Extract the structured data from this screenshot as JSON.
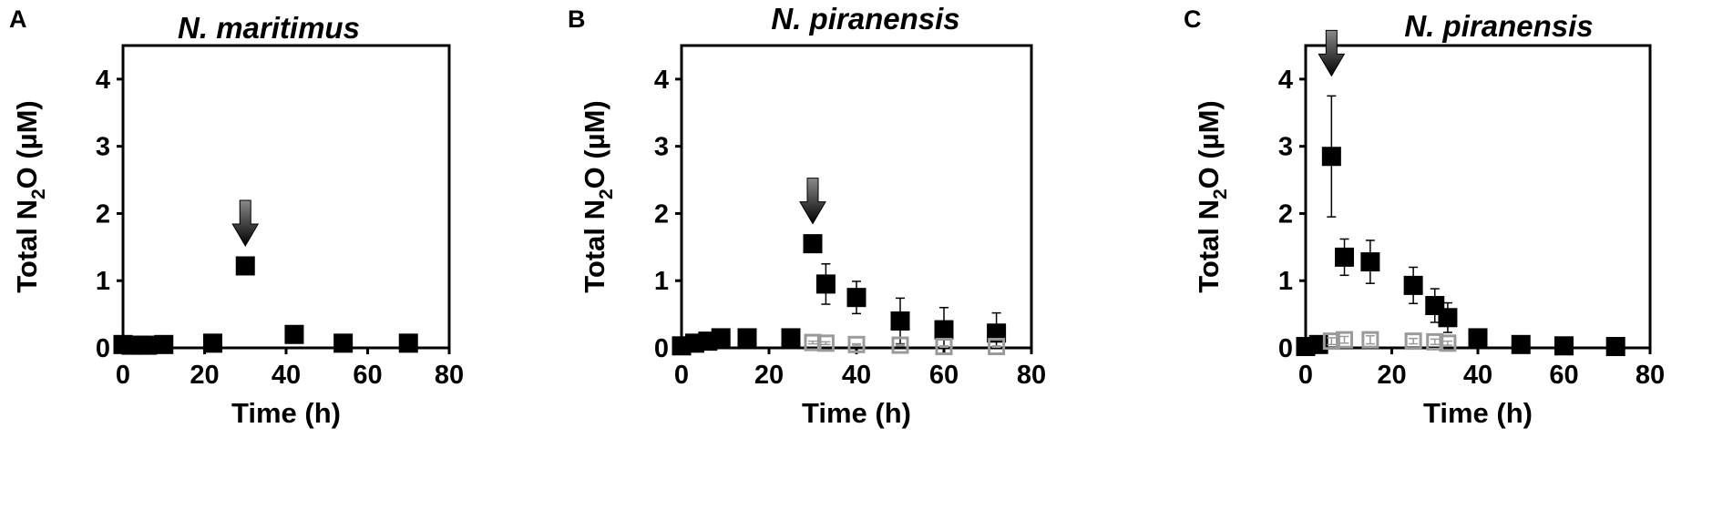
{
  "chart_data": [
    {
      "panel": "A",
      "type": "scatter",
      "title": "N. maritimus",
      "xlabel": "Time (h)",
      "ylabel_main": "Total N",
      "ylabel_sub": "2",
      "ylabel_end": "O (µM)",
      "xlim": [
        0,
        80
      ],
      "ylim": [
        0,
        4.5
      ],
      "xticks": [
        "0",
        "20",
        "40",
        "60",
        "80"
      ],
      "yticks": [
        "0",
        "1",
        "2",
        "3",
        "4"
      ],
      "arrow_x": 30,
      "series": [
        {
          "style": "filled",
          "x": [
            0,
            2,
            4,
            6,
            10,
            22,
            30,
            42,
            54,
            70
          ],
          "y": [
            0.05,
            0.04,
            0.04,
            0.04,
            0.05,
            0.07,
            1.22,
            0.2,
            0.07,
            0.07
          ],
          "err": [
            0,
            0,
            0,
            0,
            0,
            0,
            0,
            0.05,
            0,
            0
          ]
        }
      ]
    },
    {
      "panel": "B",
      "type": "scatter",
      "title": "N. piranensis",
      "xlabel": "Time (h)",
      "ylabel_main": "Total N",
      "ylabel_sub": "2",
      "ylabel_end": "O (µM)",
      "xlim": [
        0,
        80
      ],
      "ylim": [
        0,
        4.5
      ],
      "xticks": [
        "0",
        "20",
        "40",
        "60",
        "80"
      ],
      "yticks": [
        "0",
        "1",
        "2",
        "3",
        "4"
      ],
      "arrow_x": 30,
      "series": [
        {
          "style": "filled",
          "x": [
            0,
            3,
            6,
            9,
            15,
            25,
            30,
            33,
            40,
            50,
            60,
            72
          ],
          "y": [
            0.03,
            0.07,
            0.1,
            0.15,
            0.15,
            0.15,
            1.55,
            0.95,
            0.75,
            0.4,
            0.27,
            0.22
          ],
          "err": [
            0,
            0,
            0,
            0,
            0,
            0,
            0,
            0.3,
            0.24,
            0.34,
            0.33,
            0.3
          ]
        },
        {
          "style": "open",
          "x": [
            30,
            33,
            40,
            50,
            60,
            72
          ],
          "y": [
            0.08,
            0.07,
            0.05,
            0.04,
            0.02,
            0.02
          ],
          "err": [
            0.02,
            0.02,
            0.01,
            0.01,
            0.01,
            0.01
          ]
        }
      ]
    },
    {
      "panel": "C",
      "type": "scatter",
      "title": "N. piranensis",
      "xlabel": "Time (h)",
      "ylabel_main": "Total N",
      "ylabel_sub": "2",
      "ylabel_end": "O (µM)",
      "xlim": [
        0,
        80
      ],
      "ylim": [
        0,
        4.5
      ],
      "xticks": [
        "0",
        "20",
        "40",
        "60",
        "80"
      ],
      "yticks": [
        "0",
        "1",
        "2",
        "3",
        "4"
      ],
      "arrow_x": 6,
      "series": [
        {
          "style": "filled",
          "x": [
            0,
            3,
            6,
            9,
            15,
            25,
            30,
            33,
            40,
            50,
            60,
            72
          ],
          "y": [
            0.02,
            0.05,
            2.85,
            1.35,
            1.28,
            0.93,
            0.63,
            0.45,
            0.15,
            0.05,
            0.03,
            0.02
          ],
          "err": [
            0,
            0,
            0.9,
            0.27,
            0.32,
            0.27,
            0.25,
            0.22,
            0.05,
            0,
            0,
            0
          ]
        },
        {
          "style": "open",
          "x": [
            6,
            9,
            15,
            25,
            30,
            33
          ],
          "y": [
            0.1,
            0.12,
            0.12,
            0.1,
            0.09,
            0.07
          ],
          "err": [
            0.05,
            0.05,
            0.06,
            0.04,
            0.04,
            0.03
          ]
        }
      ]
    }
  ]
}
